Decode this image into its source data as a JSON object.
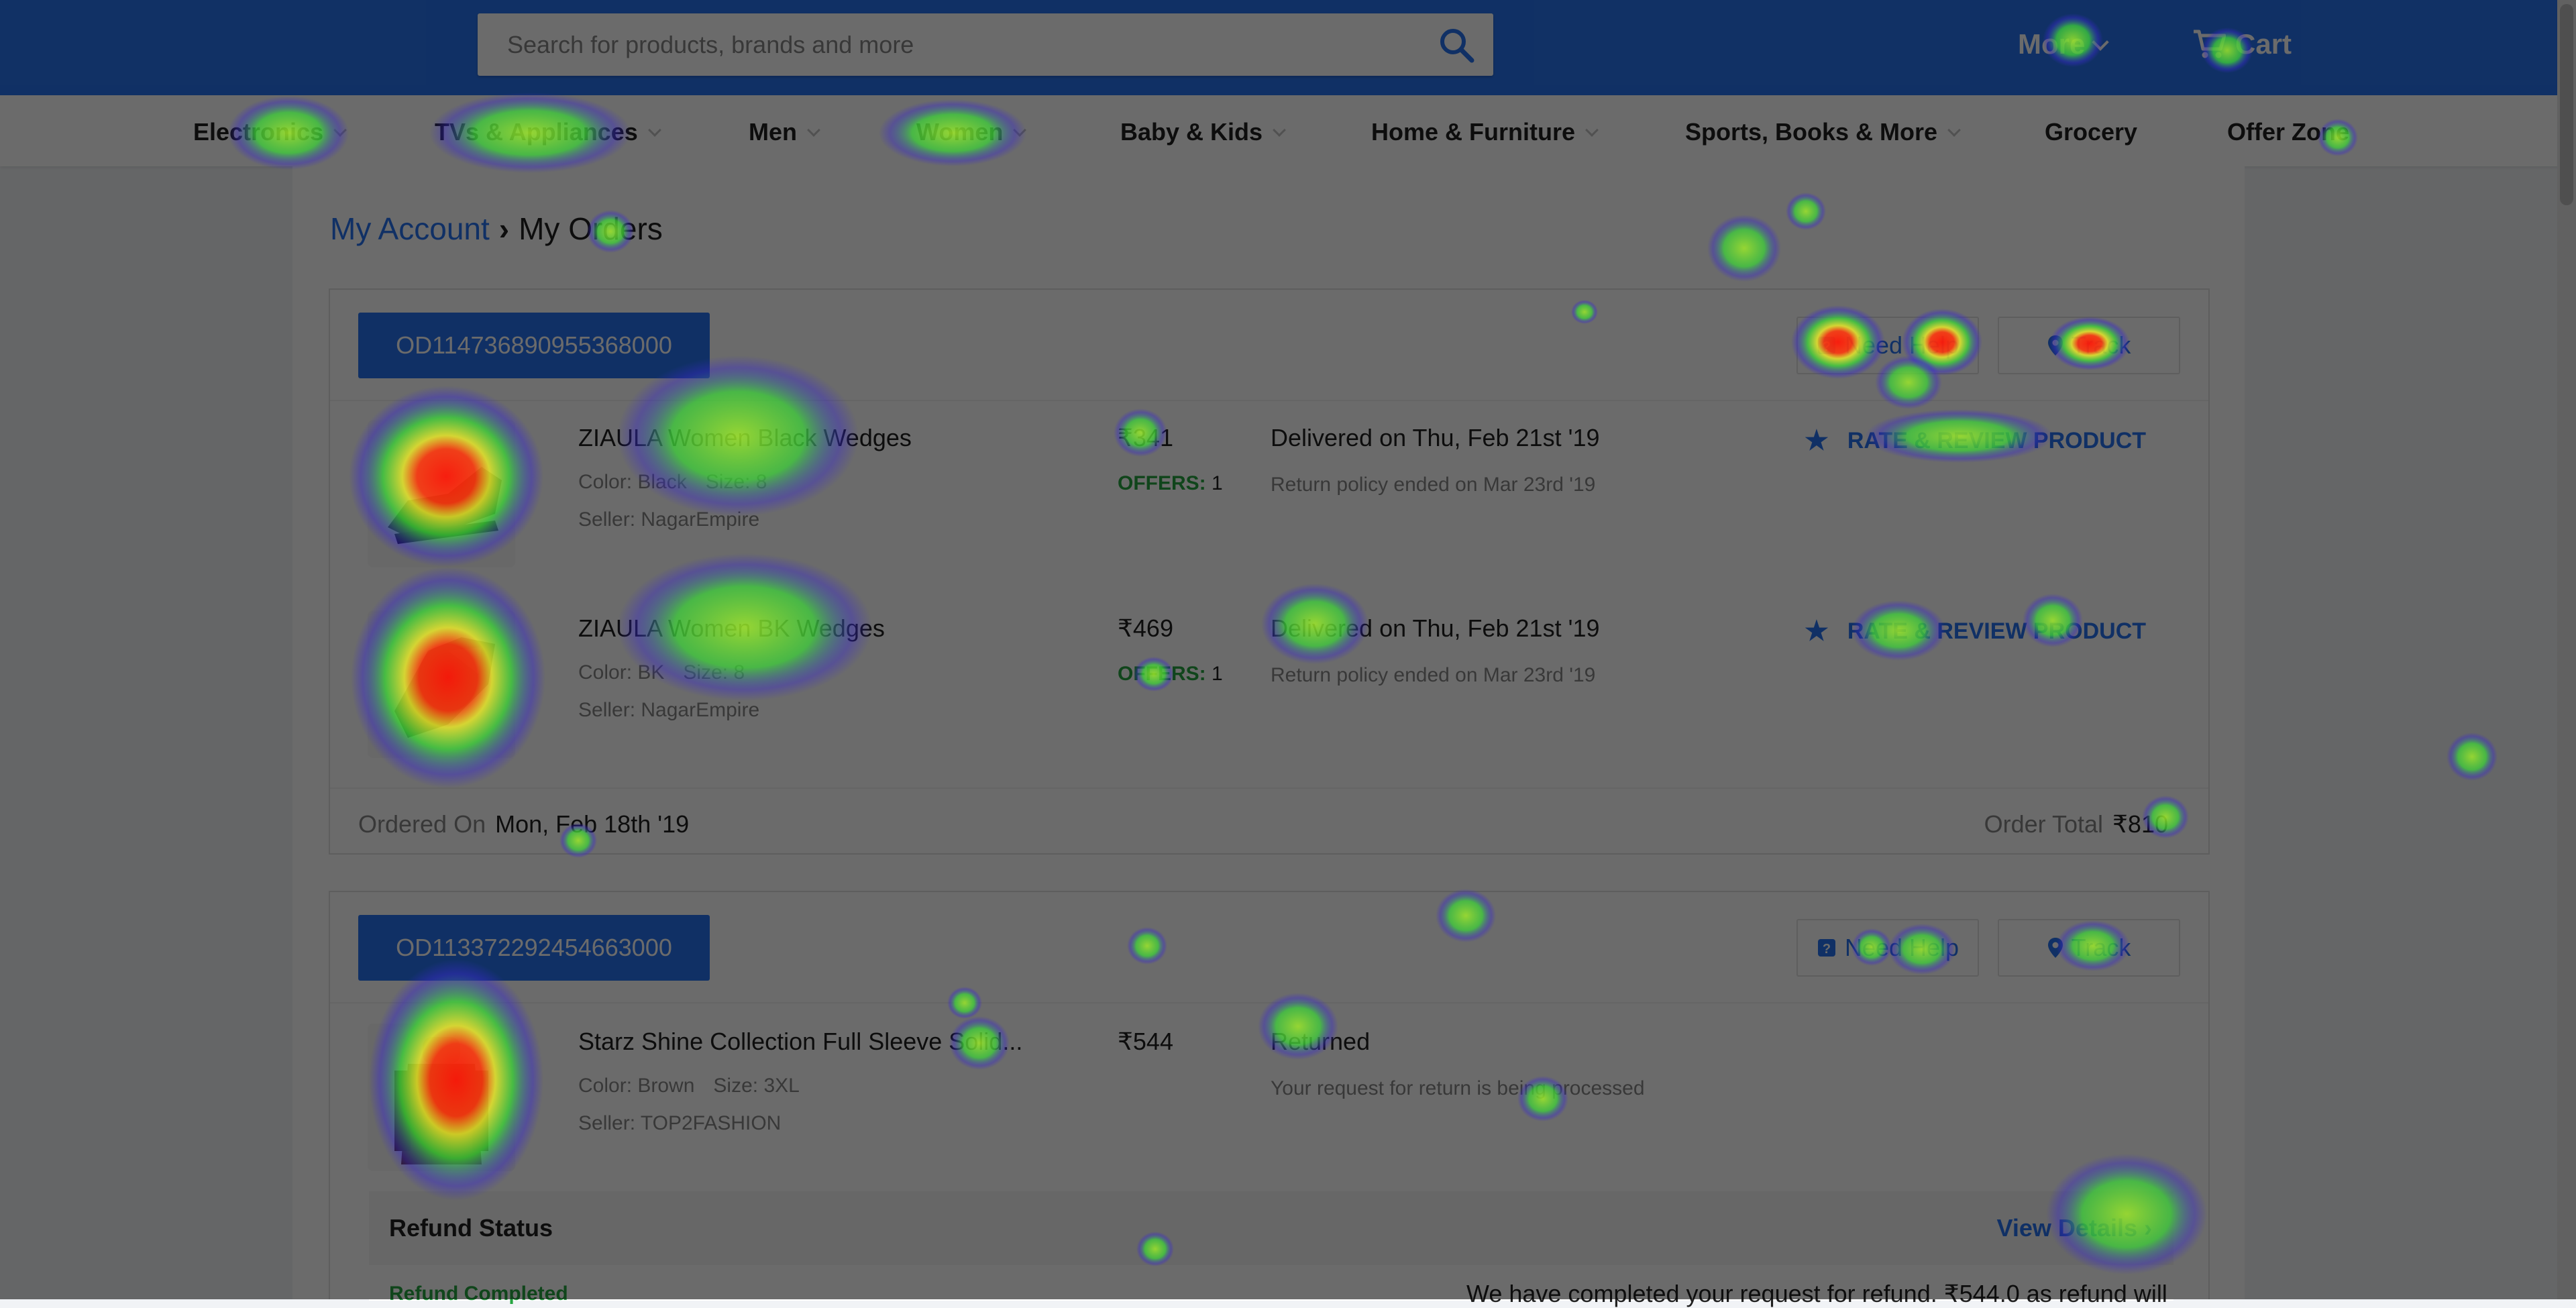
{
  "search": {
    "placeholder": "Search for products, brands and more"
  },
  "header": {
    "more_label": "More",
    "cart_label": "Cart"
  },
  "nav": {
    "items": [
      "Electronics",
      "TVs & Appliances",
      "Men",
      "Women",
      "Baby & Kids",
      "Home & Furniture",
      "Sports, Books & More",
      "Grocery",
      "Offer Zone"
    ]
  },
  "breadcrumb": {
    "parent": "My Account",
    "separator": "›",
    "current": "My Orders"
  },
  "orders": [
    {
      "id": "OD114736890955368000",
      "help_label": "Need Help",
      "track_label": "Track",
      "items": [
        {
          "title": "ZIAULA Women Black Wedges",
          "color_label": "Color:",
          "color": "Black",
          "size_label": "Size:",
          "size": "8",
          "seller_label": "Seller:",
          "seller": "NagarEmpire",
          "price": "₹341",
          "offers_label": "OFFERS:",
          "offers_count": "1",
          "status": "Delivered on Thu, Feb 21st '19",
          "status_sub": "Return policy ended on Mar 23rd '19",
          "rate_label": "RATE & REVIEW PRODUCT"
        },
        {
          "title": "ZIAULA Women BK Wedges",
          "color_label": "Color:",
          "color": "BK",
          "size_label": "Size:",
          "size": "8",
          "seller_label": "Seller:",
          "seller": "NagarEmpire",
          "price": "₹469",
          "offers_label": "OFFERS:",
          "offers_count": "1",
          "status": "Delivered on Thu, Feb 21st '19",
          "status_sub": "Return policy ended on Mar 23rd '19",
          "rate_label": "RATE & REVIEW PRODUCT"
        }
      ],
      "ordered_on_label": "Ordered On",
      "ordered_on": "Mon, Feb 18th '19",
      "total_label": "Order Total",
      "total": "₹810"
    },
    {
      "id": "OD113372292454663000",
      "help_label": "Need Help",
      "track_label": "Track",
      "items": [
        {
          "title": "Starz Shine Collection Full Sleeve Solid...",
          "color_label": "Color:",
          "color": "Brown",
          "size_label": "Size:",
          "size": "3XL",
          "seller_label": "Seller:",
          "seller": "TOP2FASHION",
          "price": "₹544",
          "status": "Returned",
          "status_sub": "Your request for return is being processed"
        }
      ],
      "refund": {
        "title": "Refund Status",
        "link_label": "View Details",
        "state": "Refund Completed",
        "message": "We have completed your request for refund. ₹544.0 as refund will"
      }
    }
  ],
  "colors": {
    "brand": "#2874f0",
    "success": "#26a541",
    "muted": "#878787"
  },
  "heatmap": {
    "note_colors": [
      "#3a2bd0",
      "#3ed13a",
      "#e8e82a",
      "#e82a1a"
    ]
  }
}
